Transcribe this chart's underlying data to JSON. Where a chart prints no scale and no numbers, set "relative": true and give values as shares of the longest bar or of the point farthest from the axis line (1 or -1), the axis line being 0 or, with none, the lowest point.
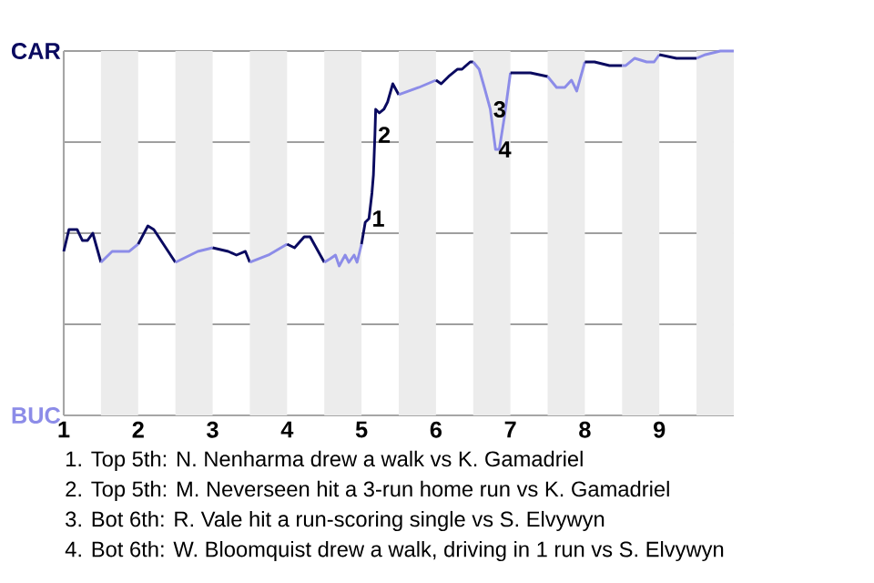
{
  "chart_data": {
    "type": "line",
    "relative": true,
    "xlim": [
      1,
      10
    ],
    "xticks": [
      1,
      2,
      3,
      4,
      5,
      6,
      7,
      8,
      9
    ],
    "grid": "y",
    "marker": "none",
    "line_style": "solid",
    "bands": [
      {
        "axis": "x",
        "from": 1.5,
        "to": 2,
        "color": "#ececec"
      },
      {
        "axis": "x",
        "from": 2.5,
        "to": 3,
        "color": "#ececec"
      },
      {
        "axis": "x",
        "from": 3.5,
        "to": 4,
        "color": "#ececec"
      },
      {
        "axis": "x",
        "from": 4.5,
        "to": 5,
        "color": "#ececec"
      },
      {
        "axis": "x",
        "from": 5.5,
        "to": 6,
        "color": "#ececec"
      },
      {
        "axis": "x",
        "from": 6.5,
        "to": 7,
        "color": "#ececec"
      },
      {
        "axis": "x",
        "from": 7.5,
        "to": 8,
        "color": "#ececec"
      },
      {
        "axis": "x",
        "from": 8.5,
        "to": 9,
        "color": "#ececec"
      },
      {
        "axis": "x",
        "from": 9.5,
        "to": 10,
        "color": "#ececec"
      }
    ],
    "series": [
      {
        "color": "#0a0a60",
        "x": [
          1,
          1.07,
          1.18,
          1.25,
          1.32,
          1.39,
          1.5
        ],
        "values": [
          0.45,
          0.51,
          0.51,
          0.48,
          0.48,
          0.5,
          0.42
        ]
      },
      {
        "color": "#8c8ce8",
        "x": [
          1.5,
          1.65,
          1.78,
          1.88,
          2
        ],
        "values": [
          0.42,
          0.45,
          0.45,
          0.45,
          0.47
        ]
      },
      {
        "color": "#0a0a60",
        "x": [
          2,
          2.13,
          2.21,
          2.5
        ],
        "values": [
          0.47,
          0.52,
          0.51,
          0.42
        ]
      },
      {
        "color": "#8c8ce8",
        "x": [
          2.5,
          2.8,
          3
        ],
        "values": [
          0.42,
          0.45,
          0.46
        ]
      },
      {
        "color": "#0a0a60",
        "x": [
          3,
          3.21,
          3.32,
          3.44,
          3.5
        ],
        "values": [
          0.46,
          0.45,
          0.44,
          0.45,
          0.42
        ]
      },
      {
        "color": "#8c8ce8",
        "x": [
          3.5,
          3.75,
          4
        ],
        "values": [
          0.42,
          0.44,
          0.47
        ]
      },
      {
        "color": "#0a0a60",
        "x": [
          4,
          4.1,
          4.23,
          4.31,
          4.5
        ],
        "values": [
          0.47,
          0.46,
          0.49,
          0.49,
          0.42
        ]
      },
      {
        "color": "#8c8ce8",
        "x": [
          4.5,
          4.58,
          4.65,
          4.7,
          4.78,
          4.83,
          4.9,
          4.94,
          5
        ],
        "values": [
          0.42,
          0.43,
          0.44,
          0.41,
          0.44,
          0.42,
          0.44,
          0.42,
          0.47
        ]
      },
      {
        "color": "#0a0a60",
        "x": [
          5,
          5.05,
          5.1,
          5.14,
          5.16,
          5.18,
          5.19,
          5.24,
          5.3,
          5.35,
          5.42,
          5.5
        ],
        "values": [
          0.47,
          0.53,
          0.54,
          0.61,
          0.66,
          0.77,
          0.84,
          0.83,
          0.84,
          0.86,
          0.91,
          0.88
        ]
      },
      {
        "color": "#8c8ce8",
        "x": [
          5.5,
          5.77,
          6
        ],
        "values": [
          0.88,
          0.9,
          0.92
        ]
      },
      {
        "color": "#0a0a60",
        "x": [
          6,
          6.07,
          6.17,
          6.29,
          6.35,
          6.46,
          6.5
        ],
        "values": [
          0.92,
          0.91,
          0.93,
          0.95,
          0.95,
          0.97,
          0.97
        ]
      },
      {
        "color": "#8c8ce8",
        "x": [
          6.5,
          6.58,
          6.65,
          6.73,
          6.8,
          6.85,
          6.92,
          7
        ],
        "values": [
          0.97,
          0.95,
          0.9,
          0.84,
          0.73,
          0.73,
          0.82,
          0.94
        ]
      },
      {
        "color": "#0a0a60",
        "x": [
          7,
          7.27,
          7.5
        ],
        "values": [
          0.94,
          0.94,
          0.93
        ]
      },
      {
        "color": "#8c8ce8",
        "x": [
          7.5,
          7.62,
          7.73,
          7.82,
          7.89,
          8
        ],
        "values": [
          0.93,
          0.9,
          0.9,
          0.92,
          0.89,
          0.97
        ]
      },
      {
        "color": "#0a0a60",
        "x": [
          8,
          8.13,
          8.33,
          8.5
        ],
        "values": [
          0.97,
          0.97,
          0.96,
          0.96
        ]
      },
      {
        "color": "#8c8ce8",
        "x": [
          8.5,
          8.55,
          8.67,
          8.83,
          8.93,
          9
        ],
        "values": [
          0.96,
          0.96,
          0.98,
          0.97,
          0.97,
          0.99
        ]
      },
      {
        "color": "#0a0a60",
        "x": [
          9,
          9.23,
          9.5
        ],
        "values": [
          0.99,
          0.98,
          0.98
        ]
      },
      {
        "color": "#8c8ce8",
        "x": [
          9.5,
          9.62,
          9.82,
          10
        ],
        "values": [
          0.98,
          0.99,
          1.0,
          1.0
        ]
      }
    ],
    "annotations": [
      "CAR",
      "BUC",
      {
        "text": "1",
        "x": 5.1,
        "y": 0.54
      },
      {
        "text": "2",
        "x": 5.18,
        "y": 0.77
      },
      {
        "text": "3",
        "x": 6.73,
        "y": 0.84
      },
      {
        "text": "4",
        "x": 6.8,
        "y": 0.73
      },
      "1. Top 5th: N. Nenharma drew a walk vs K. Gamadriel",
      "2. Top 5th: M. Neverseen hit a 3-run home run vs K. Gamadriel",
      "3. Bot 6th: R. Vale hit a run-scoring single vs S. Elvywyn",
      "4. Bot 6th: W. Bloomquist drew a walk, driving in 1 run vs S. Elvywyn"
    ]
  }
}
